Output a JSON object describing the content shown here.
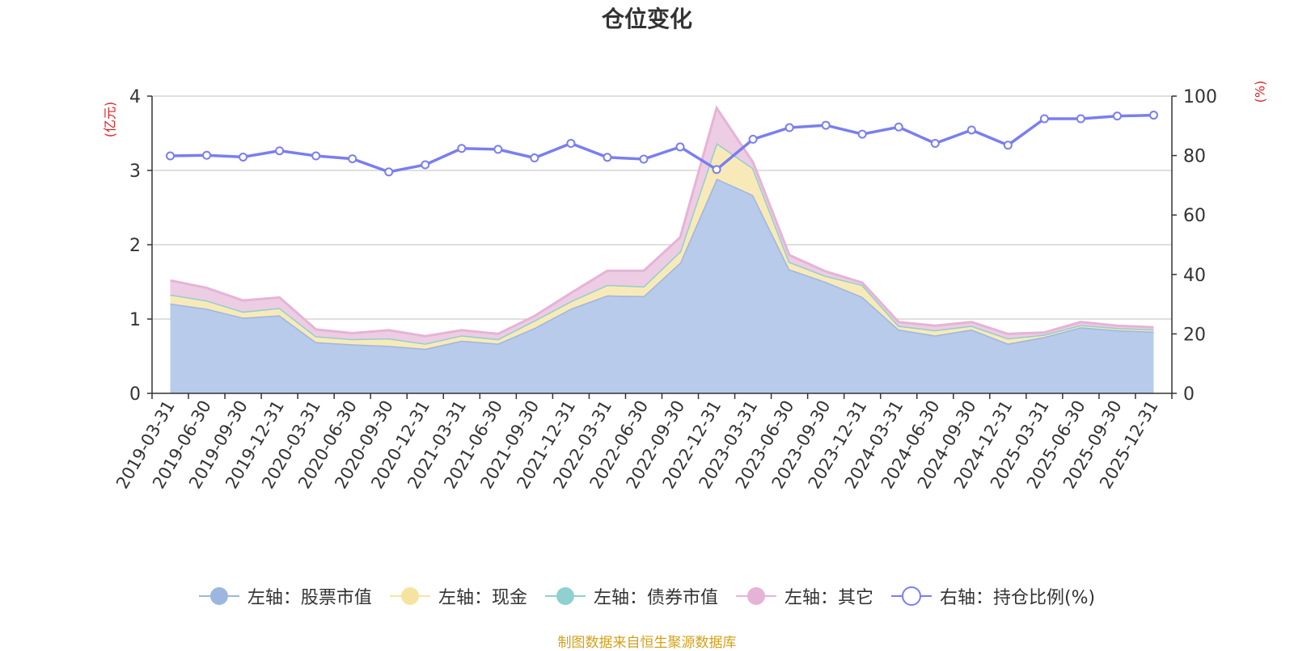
{
  "chart_data": {
    "type": "area",
    "title": "仓位变化",
    "left_axis_unit": "(亿元)",
    "right_axis_unit": "(%)",
    "left_ylim": [
      0,
      4
    ],
    "left_ticks": [
      "0",
      "1",
      "2",
      "3",
      "4"
    ],
    "right_ylim": [
      0,
      100
    ],
    "right_ticks": [
      "0",
      "20",
      "40",
      "60",
      "80",
      "100"
    ],
    "categories": [
      "2019-03-31",
      "2019-06-30",
      "2019-09-30",
      "2019-12-31",
      "2020-03-31",
      "2020-06-30",
      "2020-09-30",
      "2020-12-31",
      "2021-03-31",
      "2021-06-30",
      "2021-09-30",
      "2021-12-31",
      "2022-03-31",
      "2022-06-30",
      "2022-09-30",
      "2022-12-31",
      "2023-03-31",
      "2023-06-30",
      "2023-09-30",
      "2023-12-31",
      "2024-03-31",
      "2024-06-30",
      "2024-09-30",
      "2024-12-31",
      "2025-03-31",
      "2025-06-30",
      "2025-09-30",
      "2025-12-31"
    ],
    "series": [
      {
        "name": "左轴：股票市值",
        "axis": "left",
        "kind": "stacked-area",
        "color": "#9db6e0",
        "fill": "#b8cbea",
        "values": [
          1.21,
          1.14,
          1.02,
          1.05,
          0.69,
          0.66,
          0.64,
          0.6,
          0.71,
          0.67,
          0.88,
          1.14,
          1.32,
          1.31,
          1.76,
          2.89,
          2.67,
          1.67,
          1.5,
          1.3,
          0.86,
          0.78,
          0.86,
          0.67,
          0.76,
          0.89,
          0.85,
          0.83
        ]
      },
      {
        "name": "左轴：现金",
        "axis": "left",
        "kind": "stacked-area",
        "color": "#f7e3a1",
        "fill": "#f8eab8",
        "values": [
          0.12,
          0.11,
          0.08,
          0.1,
          0.08,
          0.07,
          0.1,
          0.07,
          0.07,
          0.06,
          0.1,
          0.1,
          0.14,
          0.13,
          0.15,
          0.48,
          0.36,
          0.1,
          0.08,
          0.16,
          0.05,
          0.07,
          0.05,
          0.07,
          0.03,
          0.03,
          0.03,
          0.03
        ]
      },
      {
        "name": "左轴：债券市值",
        "axis": "left",
        "kind": "stacked-area",
        "color": "#8fd0d0",
        "fill": "#a8dada",
        "values": [
          0,
          0,
          0,
          0,
          0,
          0,
          0,
          0,
          0,
          0,
          0,
          0,
          0,
          0,
          0,
          0,
          0,
          0,
          0,
          0,
          0,
          0,
          0,
          0,
          0,
          0,
          0,
          0
        ]
      },
      {
        "name": "左轴：其它",
        "axis": "left",
        "kind": "stacked-area",
        "color": "#e6b3d6",
        "fill": "#edcde3",
        "values": [
          0.19,
          0.17,
          0.15,
          0.14,
          0.09,
          0.08,
          0.11,
          0.1,
          0.07,
          0.07,
          0.06,
          0.11,
          0.19,
          0.21,
          0.19,
          0.47,
          0.08,
          0.09,
          0.06,
          0.03,
          0.05,
          0.06,
          0.05,
          0.06,
          0.03,
          0.04,
          0.03,
          0.03
        ]
      },
      {
        "name": "右轴：持仓比例(%)",
        "axis": "right",
        "kind": "line",
        "color": "#7a7ef0",
        "values": [
          79.9,
          80.1,
          79.5,
          81.6,
          79.9,
          78.9,
          74.5,
          76.9,
          82.4,
          82.1,
          79.2,
          84.1,
          79.4,
          78.8,
          82.9,
          75.3,
          85.5,
          89.4,
          90.2,
          87.2,
          89.6,
          84.1,
          88.6,
          83.5,
          92.4,
          92.4,
          93.3,
          93.6
        ]
      }
    ],
    "legend_position": "bottom-center",
    "grid": true
  },
  "footer": {
    "source": "制图数据来自恒生聚源数据库"
  }
}
